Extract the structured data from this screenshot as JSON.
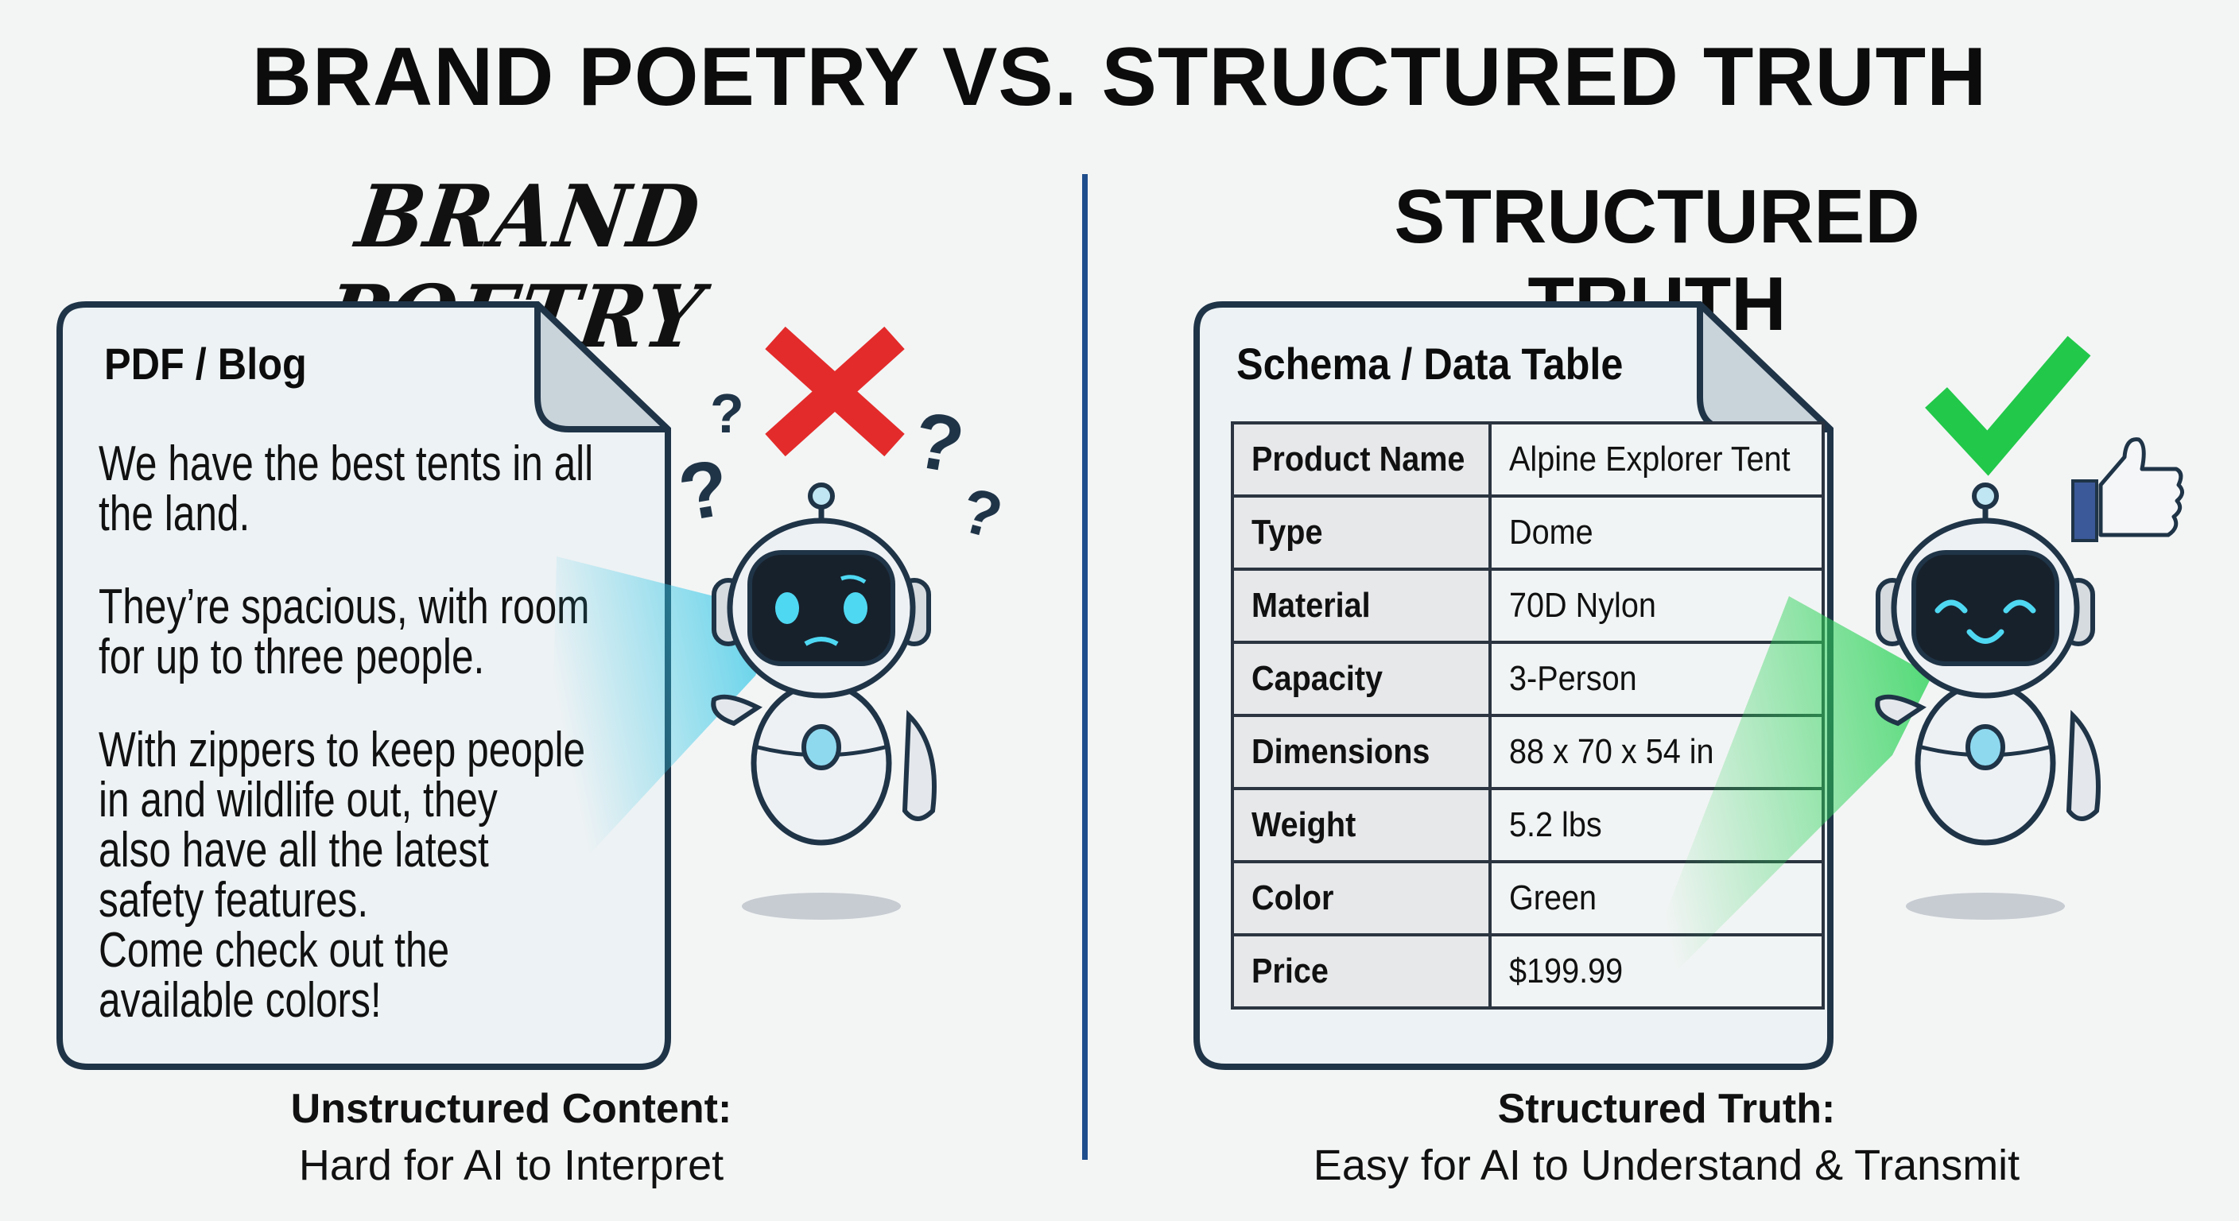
{
  "title": "BRAND POETRY VS. STRUCTURED TRUTH",
  "left": {
    "heading": "BRAND POETRY",
    "doc_title": "PDF / Blog",
    "paragraphs": [
      [
        "We have the best tents in all",
        "the land."
      ],
      [
        "They’re spacious, with room",
        "for up to three people."
      ],
      [
        "With zippers to keep people",
        "in and wildlife out, they",
        "also have all the latest",
        "safety features."
      ],
      [
        "Come check out the",
        "available colors!"
      ]
    ],
    "status_icon": "red-x-icon",
    "robot_mood": "confused",
    "caption_bold": "Unstructured Content:",
    "caption": "Hard for AI to Interpret"
  },
  "right": {
    "heading": "STRUCTURED TRUTH",
    "doc_title": "Schema / Data Table",
    "table": [
      {
        "key": "Product Name",
        "value": "Alpine Explorer Tent"
      },
      {
        "key": "Type",
        "value": "Dome"
      },
      {
        "key": "Material",
        "value": "70D Nylon"
      },
      {
        "key": "Capacity",
        "value": "3-Person"
      },
      {
        "key": "Dimensions",
        "value": "88 x 70 x 54 in"
      },
      {
        "key": "Weight",
        "value": "5.2 lbs"
      },
      {
        "key": "Color",
        "value": "Green"
      },
      {
        "key": "Price",
        "value": "$199.99"
      }
    ],
    "status_icon": "green-check-icon",
    "robot_mood": "happy",
    "caption_bold": "Structured Truth:",
    "caption": "Easy for AI to Understand & Transmit"
  },
  "colors": {
    "divider": "#1f4e8c",
    "red_x": "#e32b2b",
    "green_check": "#22c84a",
    "cyan_beam": "#2fc6e6",
    "green_beam": "#2ed35a",
    "doc_border": "#1f3447"
  }
}
